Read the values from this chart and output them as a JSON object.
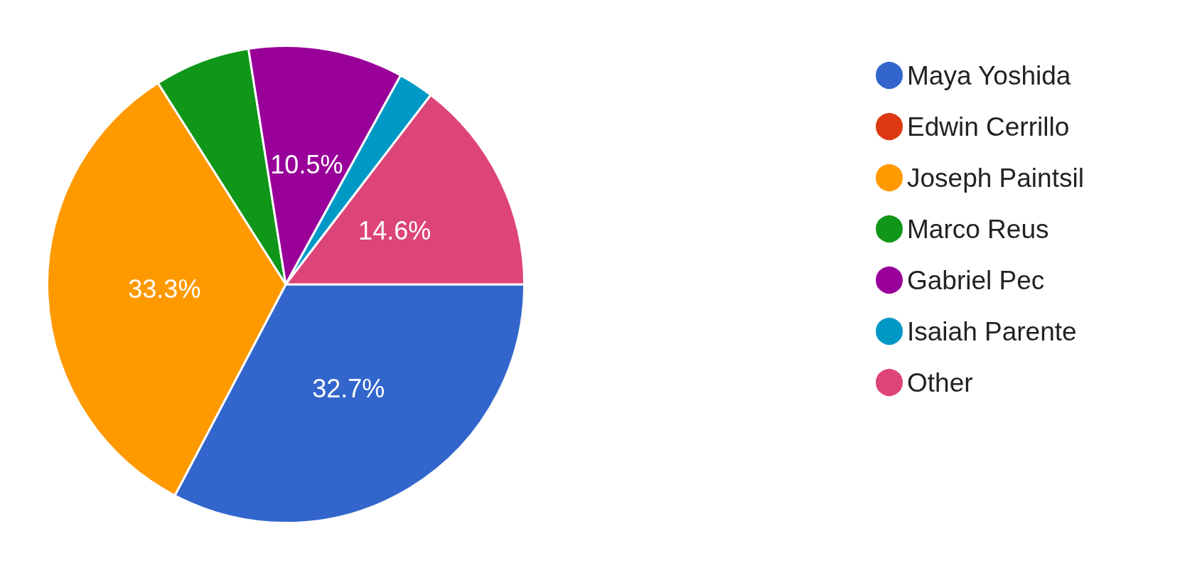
{
  "chart_data": {
    "type": "pie",
    "categories": [
      "Maya Yoshida",
      "Edwin Cerrillo",
      "Joseph Paintsil",
      "Marco Reus",
      "Gabriel Pec",
      "Isaiah Parente",
      "Other"
    ],
    "values": [
      32.7,
      null,
      33.3,
      6.5,
      10.5,
      2.4,
      14.6
    ],
    "colors": [
      "#3366cc",
      "#dc3912",
      "#ff9900",
      "#109618",
      "#990099",
      "#0099c6",
      "#dd4477"
    ],
    "value_labels": [
      "32.7%",
      null,
      "33.3%",
      null,
      "10.5%",
      null,
      "14.6%"
    ],
    "legend": "right"
  }
}
